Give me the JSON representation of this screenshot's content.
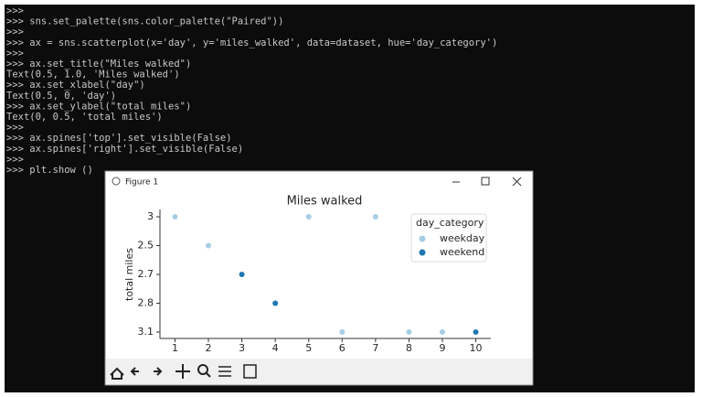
{
  "terminal": {
    "lines": [
      ">>>",
      ">>> sns.set_palette(sns.color_palette(\"Paired\"))",
      ">>>",
      ">>> ax = sns.scatterplot(x='day', y='miles_walked', data=dataset, hue='day_category')",
      ">>>",
      ">>> ax.set_title(\"Miles walked\")",
      "Text(0.5, 1.0, 'Miles walked')",
      ">>> ax.set_xlabel(\"day\")",
      "Text(0.5, 0, 'day')",
      ">>> ax.set_ylabel(\"total miles\")",
      "Text(0, 0.5, 'total miles')",
      ">>>",
      ">>> ax.spines['top'].set_visible(False)",
      ">>> ax.spines['right'].set_visible(False)",
      ">>>",
      ">>> plt.show ()"
    ]
  },
  "window": {
    "title": "Figure 1"
  },
  "chart_data": {
    "type": "scatter",
    "title": "Miles walked",
    "y_label": "total miles",
    "xlim": [
      0.55,
      10.45
    ],
    "xticks": [
      1,
      2,
      3,
      4,
      5,
      6,
      7,
      8,
      9,
      10
    ],
    "y_categories": [
      3,
      2.5,
      2.7,
      2.8,
      3.1
    ],
    "legend_title": "day_category",
    "legend": "upper right",
    "series": [
      {
        "name": "weekday",
        "color": "#a6cee3",
        "x": [
          1,
          2,
          5,
          6,
          7,
          8,
          9
        ],
        "values": [
          3,
          2.5,
          3,
          3.1,
          3,
          3.1,
          3.1
        ]
      },
      {
        "name": "weekend",
        "color": "#1f78b4",
        "x": [
          3,
          4,
          10
        ],
        "values": [
          2.7,
          2.8,
          3.1
        ]
      }
    ]
  }
}
